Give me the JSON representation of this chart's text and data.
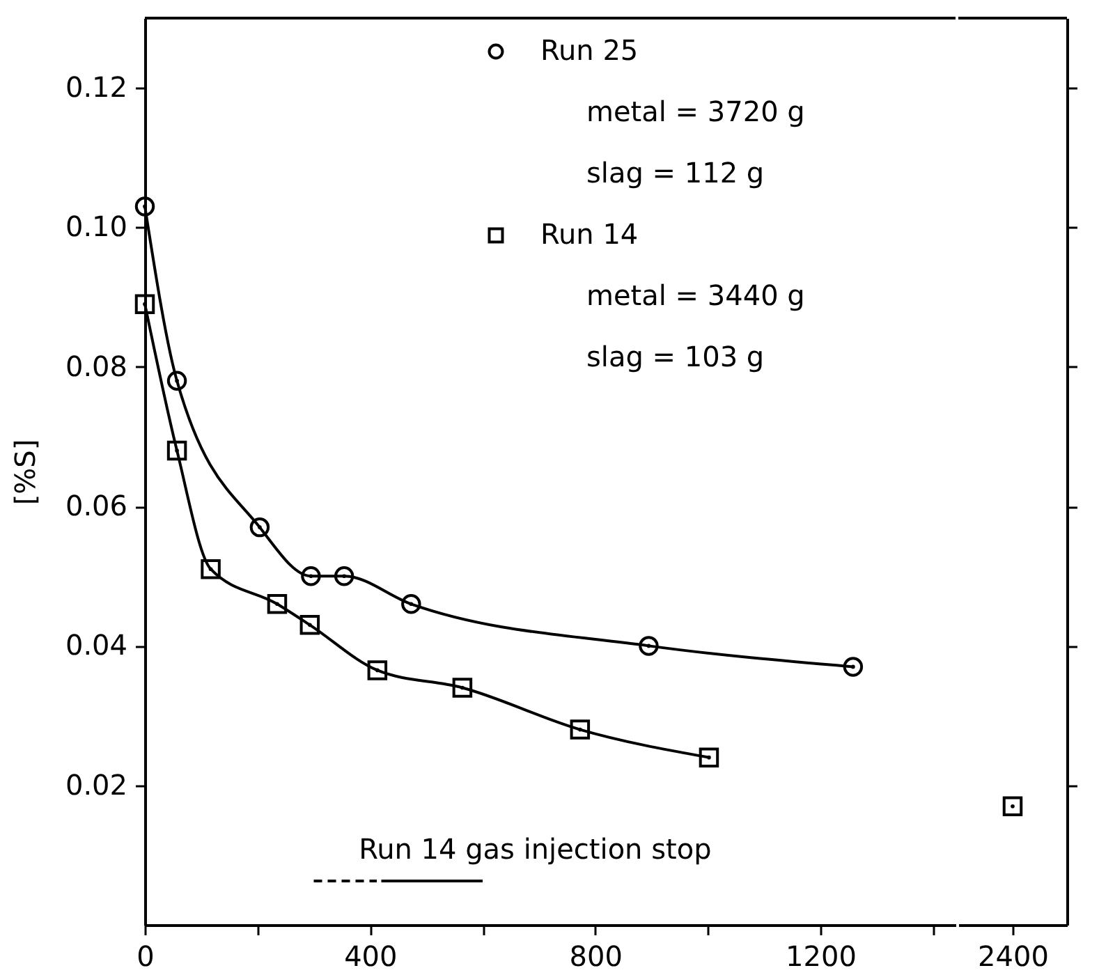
{
  "chart_data": [
    {
      "type": "line",
      "ylabel": "[%S]",
      "x": [
        0,
        57,
        204,
        295,
        354,
        473,
        895,
        1258
      ],
      "series": [
        {
          "name": "Run 25",
          "color": "#000000",
          "marker": "circle",
          "line_style": "solid",
          "values": [
            0.103,
            0.078,
            0.057,
            0.05,
            0.05,
            0.046,
            0.04,
            0.037
          ]
        },
        {
          "name": "Run 14",
          "color": "#000000",
          "marker": "square",
          "line_style": "solid",
          "x": [
            0,
            57,
            117,
            235,
            293,
            413,
            564,
            773,
            1002
          ],
          "values": [
            0.089,
            0.068,
            0.051,
            0.046,
            0.043,
            0.0365,
            0.034,
            0.028,
            0.024
          ]
        },
        {
          "color": "#000000",
          "marker": "none",
          "line_style": "dashed",
          "x": [
            300,
            412
          ],
          "values": [
            0.0063,
            0.0063
          ]
        },
        {
          "color": "#000000",
          "marker": "none",
          "line_style": "solid",
          "x": [
            420,
            600
          ],
          "values": [
            0.0063,
            0.0063
          ]
        }
      ],
      "annotations": [
        "metal = 3720 g",
        "slag = 112 g",
        "metal = 3440 g",
        "slag = 103 g",
        {
          "text": "Run 14  gas injection stop",
          "x": 380,
          "y": 0.0063
        }
      ],
      "legend": "top right",
      "xlim": [
        0,
        1440
      ],
      "xticks": [
        0,
        {
          "value": 200,
          "label": null
        },
        400,
        {
          "value": 600,
          "label": null
        },
        800,
        {
          "value": 1000,
          "label": null
        },
        1200,
        {
          "value": 1400,
          "label": null
        }
      ],
      "ylim": [
        0,
        0.13
      ],
      "yticks": [
        0.02,
        0.04,
        0.06,
        0.08,
        {
          "value": 0.1,
          "label": "0.10"
        },
        0.12
      ],
      "grid": false
    },
    {
      "type": "line",
      "categories": [
        "2400"
      ],
      "series": [
        {
          "color": "#000000",
          "marker": "square",
          "values": [
            0.017
          ]
        }
      ],
      "ylim": [
        0,
        0.13
      ],
      "yticks": [
        {
          "value": 0.02,
          "label": null
        },
        {
          "value": 0.04,
          "label": null
        },
        {
          "value": 0.06,
          "label": null
        },
        {
          "value": 0.08,
          "label": null
        },
        {
          "value": 0.1,
          "label": null
        },
        {
          "value": 0.12,
          "label": null
        }
      ],
      "tick_labels": "x",
      "grid": false
    }
  ]
}
